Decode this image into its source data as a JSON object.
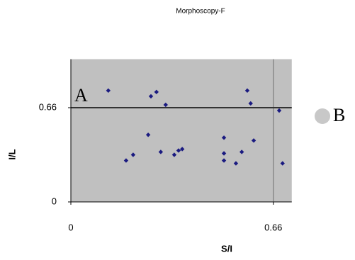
{
  "chart_data": {
    "type": "scatter",
    "title": "Morphoscopy-F",
    "x_label": "S/I",
    "y_label": "I/L",
    "x": [
      0.122,
      0.18,
      0.203,
      0.252,
      0.261,
      0.279,
      0.293,
      0.309,
      0.337,
      0.351,
      0.363,
      0.499,
      0.499,
      0.499,
      0.538,
      0.557,
      0.575,
      0.586,
      0.596,
      0.679,
      0.69
    ],
    "values": [
      0.78,
      0.29,
      0.33,
      0.47,
      0.74,
      0.77,
      0.35,
      0.68,
      0.33,
      0.36,
      0.37,
      0.45,
      0.34,
      0.29,
      0.27,
      0.35,
      0.78,
      0.69,
      0.43,
      0.64,
      0.27
    ],
    "color": "#1a1a80",
    "xlim": [
      0,
      0.72
    ],
    "ylim": [
      0,
      1.0
    ],
    "xticks": [
      0,
      0.66
    ],
    "yticks": [
      0,
      0.66
    ],
    "reference_lines": {
      "x": 0.66,
      "y": 0.66
    },
    "annotations": [
      "A",
      "B"
    ]
  }
}
